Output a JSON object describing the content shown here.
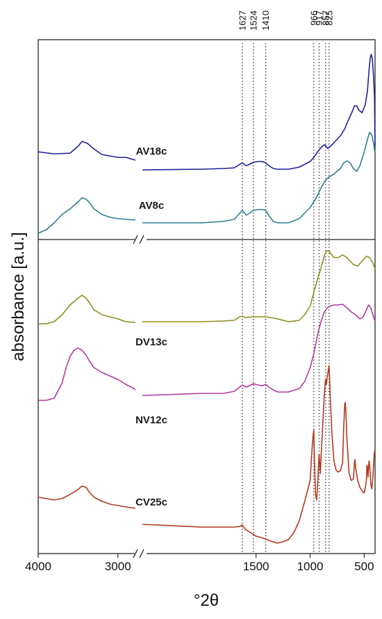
{
  "chart_data": {
    "type": "line",
    "xlabel": "°2θ",
    "ylabel": "absorbance [a.u.]",
    "x_reversed": true,
    "x_break": [
      2780,
      2550
    ],
    "xlim": [
      4000,
      400
    ],
    "x_ticks": [
      {
        "value": 4000,
        "label": "4000"
      },
      {
        "value": 3000,
        "label": "3000"
      },
      {
        "value": 1500,
        "label": "1500"
      },
      {
        "value": 1000,
        "label": "1000"
      },
      {
        "value": 500,
        "label": "500"
      }
    ],
    "reference_lines": [
      {
        "value": 1627,
        "label": "1627"
      },
      {
        "value": 1524,
        "label": "1524"
      },
      {
        "value": 1410,
        "label": "1410"
      },
      {
        "value": 966,
        "label": "966"
      },
      {
        "value": 917,
        "label": "917"
      },
      {
        "value": 857,
        "label": "857"
      },
      {
        "value": 825,
        "label": "825"
      }
    ],
    "series": [
      {
        "name": "AV18c",
        "panel": "top",
        "color": "#1f1f9a",
        "points": [
          [
            4000,
            218
          ],
          [
            3800,
            221
          ],
          [
            3600,
            220
          ],
          [
            3500,
            210
          ],
          [
            3450,
            203
          ],
          [
            3380,
            206
          ],
          [
            3300,
            214
          ],
          [
            3200,
            222
          ],
          [
            3000,
            226
          ],
          [
            2900,
            226
          ],
          [
            2780,
            230
          ],
          [
            2550,
            244
          ],
          [
            2000,
            243
          ],
          [
            1800,
            242
          ],
          [
            1700,
            241
          ],
          [
            1650,
            236
          ],
          [
            1627,
            234
          ],
          [
            1590,
            238
          ],
          [
            1560,
            236
          ],
          [
            1524,
            233
          ],
          [
            1480,
            232
          ],
          [
            1440,
            232
          ],
          [
            1410,
            234
          ],
          [
            1380,
            238
          ],
          [
            1340,
            242
          ],
          [
            1300,
            243
          ],
          [
            1200,
            243
          ],
          [
            1100,
            240
          ],
          [
            1050,
            236
          ],
          [
            1000,
            232
          ],
          [
            966,
            226
          ],
          [
            930,
            218
          ],
          [
            900,
            212
          ],
          [
            870,
            208
          ],
          [
            857,
            209
          ],
          [
            840,
            213
          ],
          [
            825,
            212
          ],
          [
            780,
            205
          ],
          [
            720,
            195
          ],
          [
            680,
            185
          ],
          [
            640,
            170
          ],
          [
            610,
            160
          ],
          [
            590,
            152
          ],
          [
            570,
            152
          ],
          [
            550,
            158
          ],
          [
            520,
            162
          ],
          [
            490,
            150
          ],
          [
            470,
            130
          ],
          [
            455,
            100
          ],
          [
            445,
            84
          ],
          [
            435,
            78
          ],
          [
            425,
            85
          ],
          [
            415,
            108
          ],
          [
            405,
            140
          ],
          [
            400,
            210
          ]
        ]
      },
      {
        "name": "AV8c",
        "panel": "top",
        "color": "#2e7f8f",
        "points": [
          [
            4000,
            335
          ],
          [
            3900,
            330
          ],
          [
            3800,
            320
          ],
          [
            3700,
            308
          ],
          [
            3600,
            300
          ],
          [
            3500,
            290
          ],
          [
            3450,
            284
          ],
          [
            3400,
            286
          ],
          [
            3350,
            292
          ],
          [
            3300,
            300
          ],
          [
            3200,
            308
          ],
          [
            3100,
            312
          ],
          [
            3000,
            314
          ],
          [
            2900,
            315
          ],
          [
            2780,
            316
          ],
          [
            2550,
            320
          ],
          [
            2000,
            320
          ],
          [
            1800,
            318
          ],
          [
            1700,
            315
          ],
          [
            1650,
            306
          ],
          [
            1627,
            302
          ],
          [
            1590,
            309
          ],
          [
            1560,
            306
          ],
          [
            1524,
            302
          ],
          [
            1480,
            301
          ],
          [
            1440,
            301
          ],
          [
            1410,
            302
          ],
          [
            1380,
            310
          ],
          [
            1340,
            318
          ],
          [
            1300,
            320
          ],
          [
            1200,
            320
          ],
          [
            1100,
            314
          ],
          [
            1050,
            306
          ],
          [
            1000,
            298
          ],
          [
            966,
            290
          ],
          [
            930,
            280
          ],
          [
            900,
            270
          ],
          [
            870,
            262
          ],
          [
            857,
            259
          ],
          [
            840,
            256
          ],
          [
            825,
            254
          ],
          [
            780,
            250
          ],
          [
            720,
            242
          ],
          [
            690,
            234
          ],
          [
            660,
            231
          ],
          [
            630,
            234
          ],
          [
            600,
            242
          ],
          [
            570,
            246
          ],
          [
            540,
            238
          ],
          [
            500,
            218
          ],
          [
            470,
            200
          ],
          [
            450,
            190
          ],
          [
            430,
            194
          ],
          [
            415,
            205
          ],
          [
            405,
            215
          ],
          [
            400,
            220
          ]
        ]
      },
      {
        "name": "DV13c",
        "panel": "bottom",
        "color": "#8d8d1a",
        "points": [
          [
            4000,
            465
          ],
          [
            3900,
            465
          ],
          [
            3800,
            462
          ],
          [
            3700,
            452
          ],
          [
            3600,
            438
          ],
          [
            3500,
            428
          ],
          [
            3450,
            424
          ],
          [
            3400,
            428
          ],
          [
            3350,
            436
          ],
          [
            3300,
            445
          ],
          [
            3200,
            452
          ],
          [
            3100,
            455
          ],
          [
            3000,
            458
          ],
          [
            2900,
            462
          ],
          [
            2780,
            463
          ],
          [
            2550,
            462
          ],
          [
            2000,
            462
          ],
          [
            1800,
            461
          ],
          [
            1700,
            460
          ],
          [
            1650,
            455
          ],
          [
            1627,
            454
          ],
          [
            1600,
            456
          ],
          [
            1524,
            455
          ],
          [
            1410,
            455
          ],
          [
            1300,
            458
          ],
          [
            1200,
            462
          ],
          [
            1100,
            460
          ],
          [
            1050,
            452
          ],
          [
            1000,
            440
          ],
          [
            966,
            420
          ],
          [
            930,
            400
          ],
          [
            900,
            385
          ],
          [
            870,
            368
          ],
          [
            857,
            363
          ],
          [
            840,
            360
          ],
          [
            825,
            361
          ],
          [
            780,
            370
          ],
          [
            740,
            370
          ],
          [
            700,
            366
          ],
          [
            660,
            370
          ],
          [
            600,
            380
          ],
          [
            560,
            382
          ],
          [
            520,
            375
          ],
          [
            480,
            368
          ],
          [
            450,
            370
          ],
          [
            420,
            378
          ],
          [
            400,
            386
          ]
        ]
      },
      {
        "name": "NV12c",
        "panel": "bottom",
        "color": "#b03aa3",
        "points": [
          [
            4000,
            575
          ],
          [
            3900,
            575
          ],
          [
            3800,
            572
          ],
          [
            3700,
            550
          ],
          [
            3650,
            528
          ],
          [
            3600,
            512
          ],
          [
            3550,
            503
          ],
          [
            3500,
            500
          ],
          [
            3450,
            503
          ],
          [
            3400,
            510
          ],
          [
            3350,
            520
          ],
          [
            3300,
            528
          ],
          [
            3200,
            535
          ],
          [
            3100,
            540
          ],
          [
            3000,
            545
          ],
          [
            2900,
            552
          ],
          [
            2800,
            558
          ],
          [
            2780,
            560
          ],
          [
            2550,
            568
          ],
          [
            2000,
            565
          ],
          [
            1800,
            565
          ],
          [
            1700,
            562
          ],
          [
            1650,
            556
          ],
          [
            1627,
            553
          ],
          [
            1590,
            556
          ],
          [
            1560,
            554
          ],
          [
            1524,
            551
          ],
          [
            1480,
            553
          ],
          [
            1440,
            554
          ],
          [
            1410,
            552
          ],
          [
            1380,
            556
          ],
          [
            1340,
            560
          ],
          [
            1300,
            563
          ],
          [
            1200,
            563
          ],
          [
            1100,
            558
          ],
          [
            1050,
            548
          ],
          [
            1000,
            528
          ],
          [
            966,
            508
          ],
          [
            930,
            480
          ],
          [
            900,
            462
          ],
          [
            870,
            448
          ],
          [
            857,
            446
          ],
          [
            840,
            442
          ],
          [
            825,
            440
          ],
          [
            780,
            438
          ],
          [
            740,
            438
          ],
          [
            700,
            437
          ],
          [
            660,
            442
          ],
          [
            620,
            448
          ],
          [
            580,
            452
          ],
          [
            540,
            458
          ],
          [
            510,
            455
          ],
          [
            480,
            445
          ],
          [
            460,
            438
          ],
          [
            440,
            442
          ],
          [
            420,
            452
          ],
          [
            400,
            462
          ]
        ]
      },
      {
        "name": "CV25c",
        "panel": "bottom",
        "color": "#b23a1e",
        "points": [
          [
            4000,
            714
          ],
          [
            3900,
            716
          ],
          [
            3800,
            718
          ],
          [
            3700,
            716
          ],
          [
            3600,
            710
          ],
          [
            3500,
            703
          ],
          [
            3450,
            698
          ],
          [
            3400,
            700
          ],
          [
            3350,
            708
          ],
          [
            3300,
            714
          ],
          [
            3200,
            720
          ],
          [
            3100,
            724
          ],
          [
            3000,
            726
          ],
          [
            2900,
            728
          ],
          [
            2780,
            730
          ],
          [
            2550,
            753
          ],
          [
            2000,
            757
          ],
          [
            1800,
            757
          ],
          [
            1700,
            757
          ],
          [
            1650,
            756
          ],
          [
            1627,
            754
          ],
          [
            1600,
            760
          ],
          [
            1550,
            765
          ],
          [
            1500,
            770
          ],
          [
            1450,
            772
          ],
          [
            1400,
            775
          ],
          [
            1350,
            778
          ],
          [
            1300,
            780
          ],
          [
            1250,
            778
          ],
          [
            1200,
            775
          ],
          [
            1150,
            765
          ],
          [
            1100,
            748
          ],
          [
            1050,
            720
          ],
          [
            1000,
            690
          ],
          [
            980,
            640
          ],
          [
            970,
            622
          ],
          [
            966,
            618
          ],
          [
            960,
            660
          ],
          [
            950,
            710
          ],
          [
            940,
            718
          ],
          [
            930,
            695
          ],
          [
            917,
            652
          ],
          [
            905,
            680
          ],
          [
            900,
            660
          ],
          [
            880,
            600
          ],
          [
            870,
            570
          ],
          [
            860,
            548
          ],
          [
            857,
            545
          ],
          [
            850,
            552
          ],
          [
            840,
            540
          ],
          [
            825,
            525
          ],
          [
            815,
            565
          ],
          [
            800,
            620
          ],
          [
            780,
            662
          ],
          [
            760,
            675
          ],
          [
            740,
            678
          ],
          [
            720,
            676
          ],
          [
            700,
            665
          ],
          [
            690,
            615
          ],
          [
            680,
            580
          ],
          [
            675,
            578
          ],
          [
            670,
            590
          ],
          [
            660,
            630
          ],
          [
            640,
            680
          ],
          [
            620,
            690
          ],
          [
            600,
            688
          ],
          [
            590,
            665
          ],
          [
            585,
            660
          ],
          [
            580,
            672
          ],
          [
            560,
            690
          ],
          [
            540,
            700
          ],
          [
            520,
            705
          ],
          [
            500,
            708
          ],
          [
            490,
            700
          ],
          [
            480,
            690
          ],
          [
            475,
            668
          ],
          [
            470,
            672
          ],
          [
            465,
            685
          ],
          [
            460,
            670
          ],
          [
            455,
            662
          ],
          [
            450,
            668
          ],
          [
            440,
            695
          ],
          [
            430,
            702
          ],
          [
            420,
            685
          ],
          [
            410,
            658
          ],
          [
            405,
            648
          ],
          [
            400,
            650
          ]
        ]
      }
    ]
  }
}
